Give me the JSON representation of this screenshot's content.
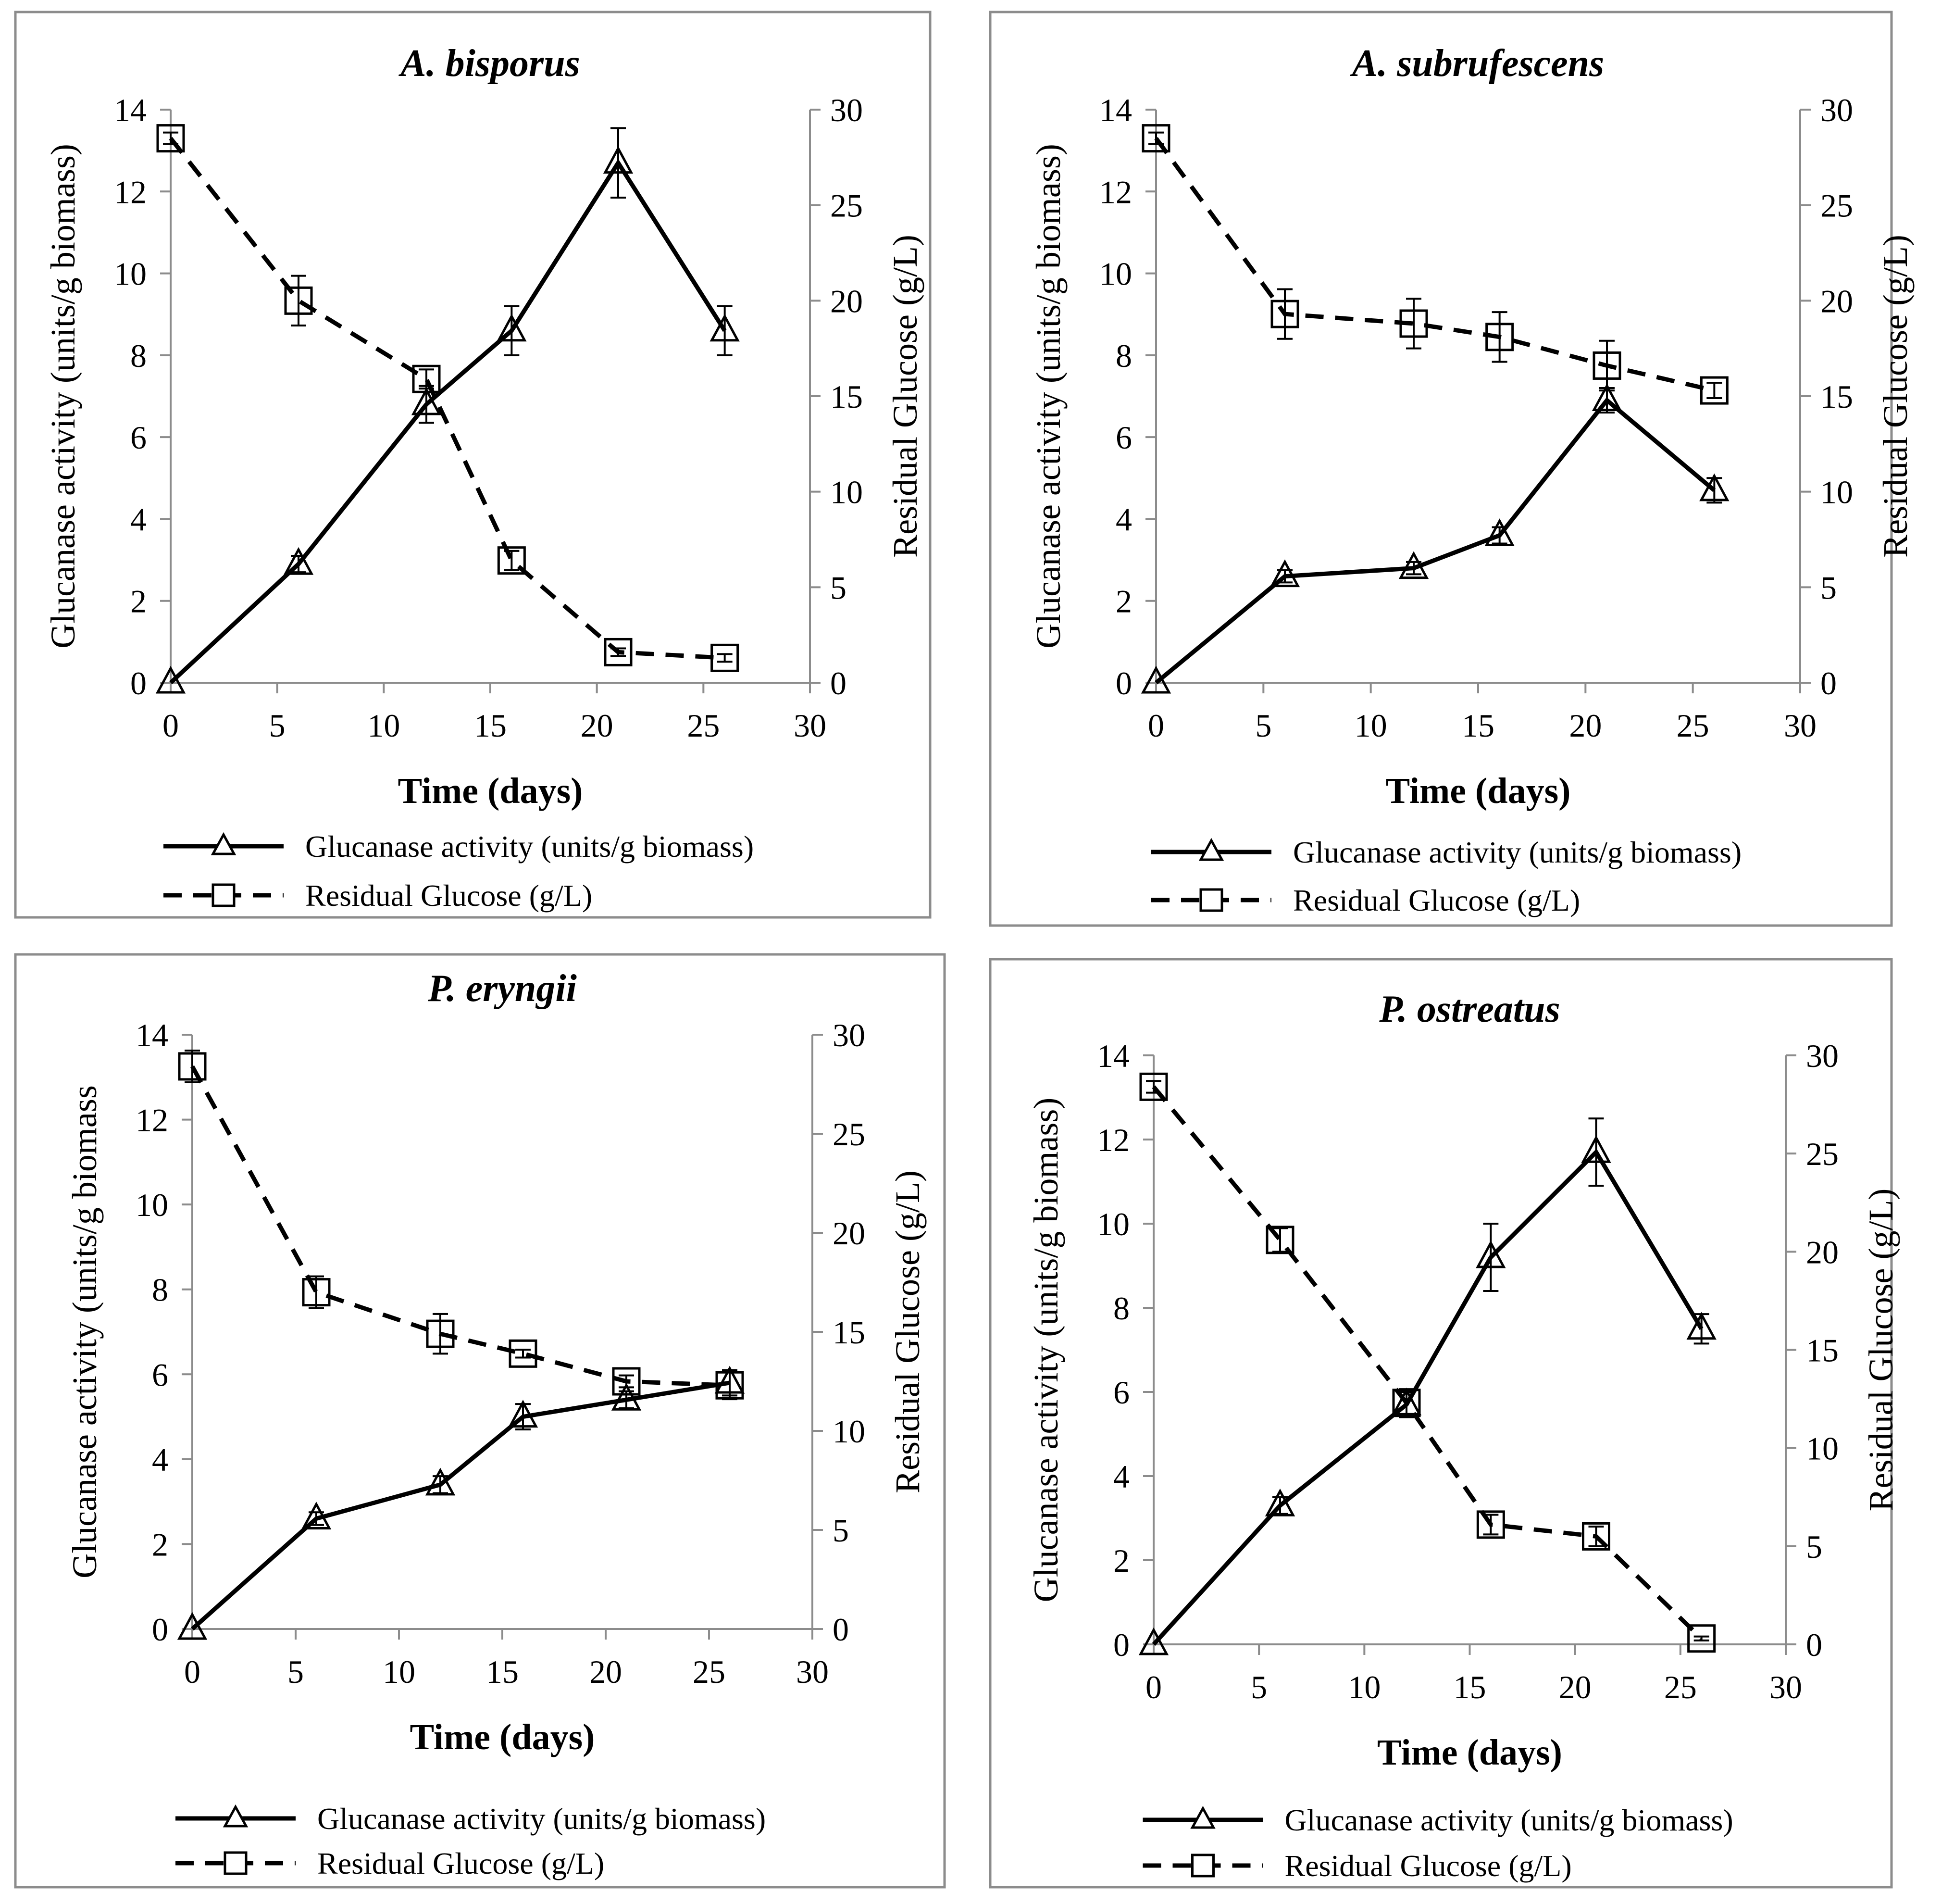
{
  "chart_data": [
    {
      "type": "line",
      "title": "A. bisporus",
      "xlabel": "Time (days)",
      "ylabel": "Glucanase activity (units/g biomass)",
      "y2label": "Residual Glucose (g/L)",
      "xlim": [
        0,
        30
      ],
      "xticks": [
        0,
        5,
        10,
        15,
        20,
        25,
        30
      ],
      "ylim": [
        0,
        14
      ],
      "yticks": [
        0,
        2,
        4,
        6,
        8,
        10,
        12,
        14
      ],
      "y2lim": [
        0,
        30
      ],
      "y2ticks": [
        0,
        5,
        10,
        15,
        20,
        25,
        30
      ],
      "x": [
        0,
        6,
        12,
        16,
        21,
        26
      ],
      "series": [
        {
          "name": "Glucanase activity (units/g biomass)",
          "axis": "left",
          "style": "solid",
          "marker": "triangle",
          "values": [
            0,
            2.9,
            6.8,
            8.6,
            12.7,
            8.6
          ],
          "errors": [
            0,
            0.2,
            0.45,
            0.6,
            0.85,
            0.6
          ]
        },
        {
          "name": "Residual Glucose  (g/L)",
          "axis": "right",
          "style": "dashed",
          "marker": "square",
          "values": [
            28.5,
            20.0,
            15.9,
            6.4,
            1.6,
            1.3
          ],
          "errors": [
            0.3,
            1.3,
            0.5,
            0.5,
            0.2,
            0.2
          ]
        }
      ],
      "legend_position": "bottom"
    },
    {
      "type": "line",
      "title": "A. subrufescens",
      "xlabel": "Time (days)",
      "ylabel": "Glucanase activity (units/g biomass)",
      "y2label": "Residual Glucose (g/L)",
      "xlim": [
        0,
        30
      ],
      "xticks": [
        0,
        5,
        10,
        15,
        20,
        25,
        30
      ],
      "ylim": [
        0,
        14
      ],
      "yticks": [
        0,
        2,
        4,
        6,
        8,
        10,
        12,
        14
      ],
      "y2lim": [
        0,
        30
      ],
      "y2ticks": [
        0,
        5,
        10,
        15,
        20,
        25,
        30
      ],
      "x": [
        0,
        6,
        12,
        16,
        21,
        26
      ],
      "series": [
        {
          "name": "Glucanase activity (units/g biomass)",
          "axis": "left",
          "style": "solid",
          "marker": "triangle",
          "values": [
            0,
            2.6,
            2.8,
            3.6,
            6.9,
            4.7
          ],
          "errors": [
            0,
            0.15,
            0.15,
            0.2,
            0.3,
            0.3
          ]
        },
        {
          "name": "Residual Glucose  (g/L)",
          "axis": "right",
          "style": "dashed",
          "marker": "square",
          "values": [
            28.5,
            19.3,
            18.8,
            18.1,
            16.6,
            15.3
          ],
          "errors": [
            0.3,
            1.3,
            1.3,
            1.3,
            1.3,
            0.4
          ]
        }
      ],
      "legend_position": "bottom"
    },
    {
      "type": "line",
      "title": "P. eryngii",
      "xlabel": "Time (days)",
      "ylabel": "Glucanase activity (units/g biomass",
      "y2label": "Residual Glucose (g/L)",
      "xlim": [
        0,
        30
      ],
      "xticks": [
        0,
        5,
        10,
        15,
        20,
        25,
        30
      ],
      "ylim": [
        0,
        14
      ],
      "yticks": [
        0,
        2,
        4,
        6,
        8,
        10,
        12,
        14
      ],
      "y2lim": [
        0,
        30
      ],
      "y2ticks": [
        0,
        5,
        10,
        15,
        20,
        25,
        30
      ],
      "x": [
        0,
        6,
        12,
        16,
        21,
        26
      ],
      "series": [
        {
          "name": "Glucanase activity (units/g biomass)",
          "axis": "left",
          "style": "solid",
          "marker": "triangle",
          "values": [
            0,
            2.6,
            3.4,
            5.0,
            5.4,
            5.8
          ],
          "errors": [
            0,
            0.15,
            0.2,
            0.3,
            0.2,
            0.3
          ]
        },
        {
          "name": "Residual Glucose  (g/L)",
          "axis": "right",
          "style": "dashed",
          "marker": "square",
          "values": [
            28.4,
            17.0,
            14.9,
            13.9,
            12.5,
            12.3
          ],
          "errors": [
            0.8,
            0.8,
            1.0,
            0.2,
            0.3,
            0.7
          ]
        }
      ],
      "legend_position": "bottom"
    },
    {
      "type": "line",
      "title": "P. ostreatus",
      "xlabel": "Time (days)",
      "ylabel": "Glucanase activity (units/g biomass)",
      "y2label": "Residual Glucose (g/L)",
      "xlim": [
        0,
        30
      ],
      "xticks": [
        0,
        5,
        10,
        15,
        20,
        25,
        30
      ],
      "ylim": [
        0,
        14
      ],
      "yticks": [
        0,
        2,
        4,
        6,
        8,
        10,
        12,
        14
      ],
      "y2lim": [
        0,
        30
      ],
      "y2ticks": [
        0,
        5,
        10,
        15,
        20,
        25,
        30
      ],
      "x": [
        0,
        6,
        12,
        16,
        21,
        26
      ],
      "series": [
        {
          "name": "Glucanase activity (units/g biomass)",
          "axis": "left",
          "style": "solid",
          "marker": "triangle",
          "values": [
            0,
            3.3,
            5.7,
            9.2,
            11.7,
            7.5
          ],
          "errors": [
            0,
            0.2,
            0.3,
            0.8,
            0.8,
            0.35
          ]
        },
        {
          "name": "Residual Glucose  (g/L)",
          "axis": "right",
          "style": "dashed",
          "marker": "square",
          "values": [
            28.4,
            20.6,
            12.3,
            6.1,
            5.5,
            0.3
          ],
          "errors": [
            0.3,
            0.6,
            0.7,
            0.5,
            0.5,
            0.1
          ]
        }
      ],
      "legend_position": "bottom"
    }
  ]
}
